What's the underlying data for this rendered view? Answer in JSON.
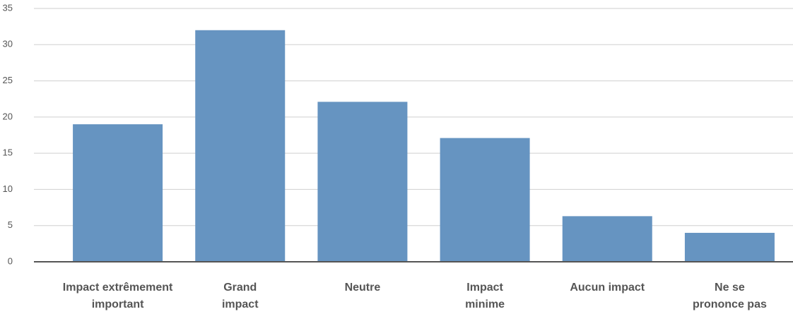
{
  "chart_data": {
    "type": "bar",
    "categories": [
      "Impact extrêmement\nimportant",
      "Grand\nimpact",
      "Neutre",
      "Impact\nminime",
      "Aucun impact",
      "Ne se\nprononce pas"
    ],
    "values": [
      19,
      32,
      22.1,
      17.1,
      6.3,
      4
    ],
    "color": "#6694c1",
    "ylim": [
      0,
      35
    ],
    "yticks": [
      0,
      5,
      10,
      15,
      20,
      25,
      30,
      35
    ],
    "grid": true
  }
}
